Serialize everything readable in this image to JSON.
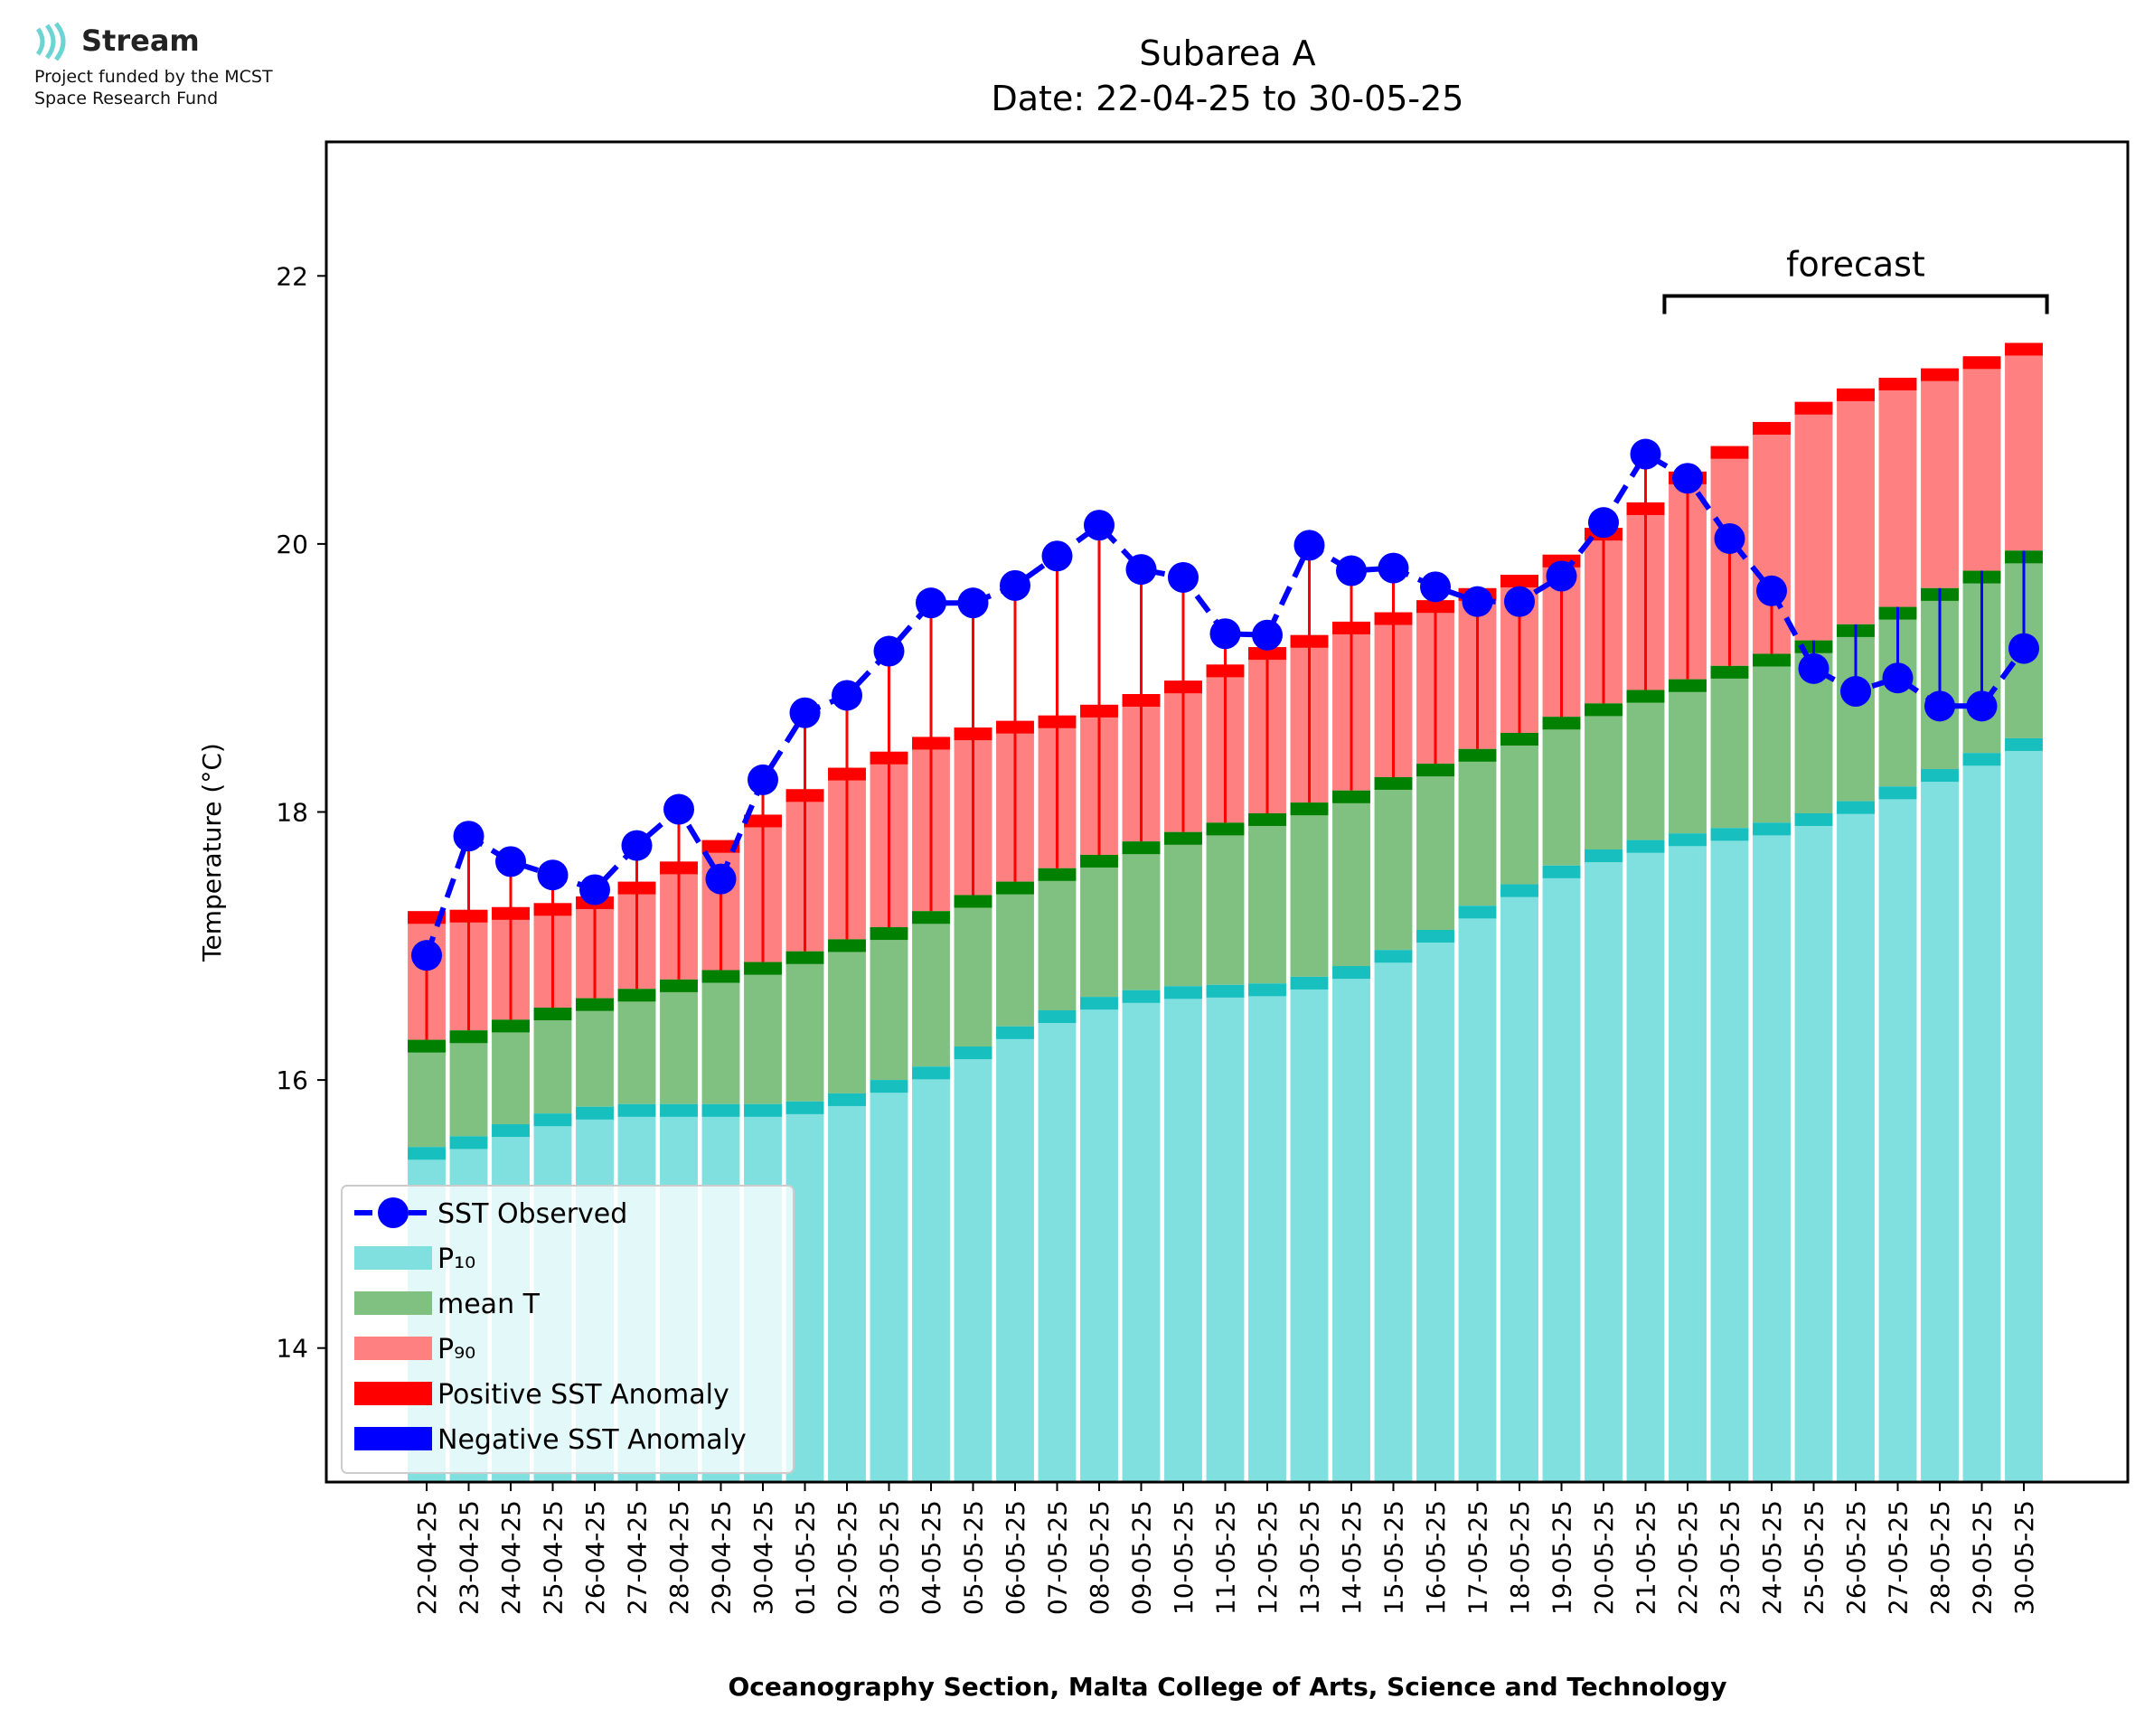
{
  "logo": {
    "name": "Stream",
    "line1": "Project funded by the MCST",
    "line2": "Space Research Fund"
  },
  "chart_data": {
    "type": "bar",
    "title": "Subarea A",
    "subtitle": "Date: 22-04-25 to 30-05-25",
    "xlabel": "Oceanography Section, Malta College of Arts, Science and Technology",
    "ylabel": "Temperature (°C)",
    "ylim": [
      13,
      23
    ],
    "yticks": [
      14,
      16,
      18,
      20,
      22
    ],
    "grid": false,
    "legend_position": "lower-left",
    "forecast_label": "forecast",
    "forecast_range": [
      "22-05-25",
      "30-05-25"
    ],
    "colors": {
      "p10": "#80dfdf",
      "p10_cap": "#18bfbf",
      "mean": "#80c080",
      "mean_cap": "#008000",
      "p90": "#ff8080",
      "p90_cap": "#ff0000",
      "positive_anomaly": "#ff0000",
      "negative_anomaly": "#0000ff",
      "observed": "#0000ff"
    },
    "categories": [
      "22-04-25",
      "23-04-25",
      "24-04-25",
      "25-04-25",
      "26-04-25",
      "27-04-25",
      "28-04-25",
      "29-04-25",
      "30-04-25",
      "01-05-25",
      "02-05-25",
      "03-05-25",
      "04-05-25",
      "05-05-25",
      "06-05-25",
      "07-05-25",
      "08-05-25",
      "09-05-25",
      "10-05-25",
      "11-05-25",
      "12-05-25",
      "13-05-25",
      "14-05-25",
      "15-05-25",
      "16-05-25",
      "17-05-25",
      "18-05-25",
      "19-05-25",
      "20-05-25",
      "21-05-25",
      "22-05-25",
      "23-05-25",
      "24-05-25",
      "25-05-25",
      "26-05-25",
      "27-05-25",
      "28-05-25",
      "29-05-25",
      "30-05-25"
    ],
    "series": [
      {
        "name": "P₁₀",
        "key": "p10",
        "values": [
          15.5,
          15.58,
          15.67,
          15.75,
          15.8,
          15.82,
          15.82,
          15.82,
          15.82,
          15.84,
          15.9,
          16.0,
          16.1,
          16.25,
          16.4,
          16.52,
          16.62,
          16.67,
          16.7,
          16.71,
          16.72,
          16.77,
          16.85,
          16.97,
          17.12,
          17.3,
          17.46,
          17.6,
          17.72,
          17.79,
          17.84,
          17.88,
          17.92,
          17.99,
          18.08,
          18.19,
          18.32,
          18.44,
          18.55
        ]
      },
      {
        "name": "mean T",
        "key": "mean",
        "values": [
          16.3,
          16.37,
          16.45,
          16.54,
          16.61,
          16.68,
          16.75,
          16.82,
          16.88,
          16.96,
          17.05,
          17.14,
          17.26,
          17.38,
          17.48,
          17.58,
          17.68,
          17.78,
          17.85,
          17.92,
          17.99,
          18.07,
          18.16,
          18.26,
          18.36,
          18.47,
          18.59,
          18.71,
          18.81,
          18.91,
          18.99,
          19.09,
          19.18,
          19.28,
          19.4,
          19.53,
          19.67,
          19.8,
          19.95
        ]
      },
      {
        "name": "P₉₀",
        "key": "p90",
        "values": [
          17.26,
          17.27,
          17.29,
          17.32,
          17.37,
          17.48,
          17.63,
          17.79,
          17.98,
          18.17,
          18.33,
          18.45,
          18.56,
          18.63,
          18.68,
          18.72,
          18.8,
          18.88,
          18.98,
          19.1,
          19.23,
          19.32,
          19.42,
          19.49,
          19.58,
          19.67,
          19.77,
          19.92,
          20.12,
          20.31,
          20.54,
          20.73,
          20.91,
          21.06,
          21.16,
          21.24,
          21.31,
          21.4,
          21.5
        ]
      },
      {
        "name": "SST Observed",
        "key": "observed",
        "values": [
          16.93,
          17.82,
          17.63,
          17.53,
          17.42,
          17.75,
          18.02,
          17.5,
          18.24,
          18.74,
          18.87,
          19.2,
          19.56,
          19.56,
          19.69,
          19.91,
          20.14,
          19.81,
          19.75,
          19.33,
          19.32,
          19.99,
          19.8,
          19.82,
          19.68,
          19.57,
          19.57,
          19.76,
          20.16,
          20.67,
          20.49,
          20.04,
          19.65,
          19.07,
          18.9,
          19.0,
          18.79,
          18.79,
          19.22
        ]
      }
    ],
    "legend": [
      "SST Observed",
      "P₁₀",
      "mean T",
      "P₉₀",
      "Positive SST Anomaly",
      "Negative SST Anomaly"
    ]
  }
}
